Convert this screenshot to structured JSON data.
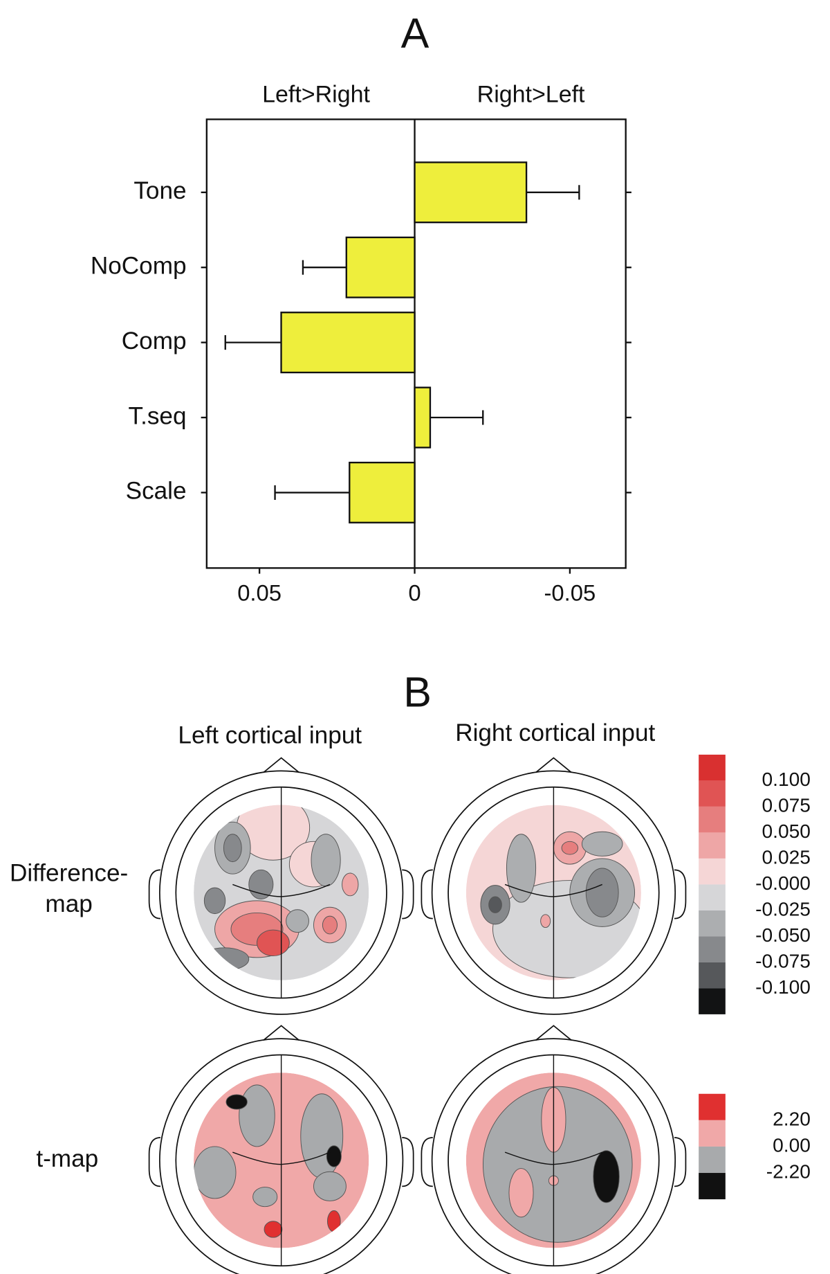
{
  "chart_data": {
    "type": "bar",
    "orientation": "horizontal",
    "title": "A",
    "direction_labels": [
      "Left>Right",
      "Right>Left"
    ],
    "categories": [
      "Tone",
      "NoComp",
      "Comp",
      "T.seq",
      "Scale"
    ],
    "values": [
      -0.036,
      0.022,
      0.043,
      -0.005,
      0.021
    ],
    "errors": [
      0.017,
      0.014,
      0.018,
      0.017,
      0.024
    ],
    "color": "#eeee3c",
    "xlim": [
      0.067,
      -0.068
    ],
    "xticks": [
      0.05,
      0,
      -0.05
    ]
  },
  "panel_b": {
    "title": "B",
    "columns": [
      "Left cortical input",
      "Right cortical input"
    ],
    "rows": [
      [
        "Difference-",
        "map"
      ],
      [
        "t-map"
      ]
    ],
    "difference_scale": {
      "colors": [
        "#d93030",
        "#e05454",
        "#e67e7e",
        "#eea6a6",
        "#f5d6d6",
        "#d6d6d8",
        "#acaeb0",
        "#87898c",
        "#56585b",
        "#121314"
      ],
      "labels": [
        "0.100",
        "0.075",
        "0.050",
        "0.025",
        "-0.000",
        "-0.025",
        "-0.050",
        "-0.075",
        "-0.100"
      ]
    },
    "t_scale": {
      "colors": [
        "#e03030",
        "#f0a8a8",
        "#a8aaac",
        "#111111"
      ],
      "labels": [
        "2.20",
        "0.00",
        "-2.20"
      ]
    }
  }
}
